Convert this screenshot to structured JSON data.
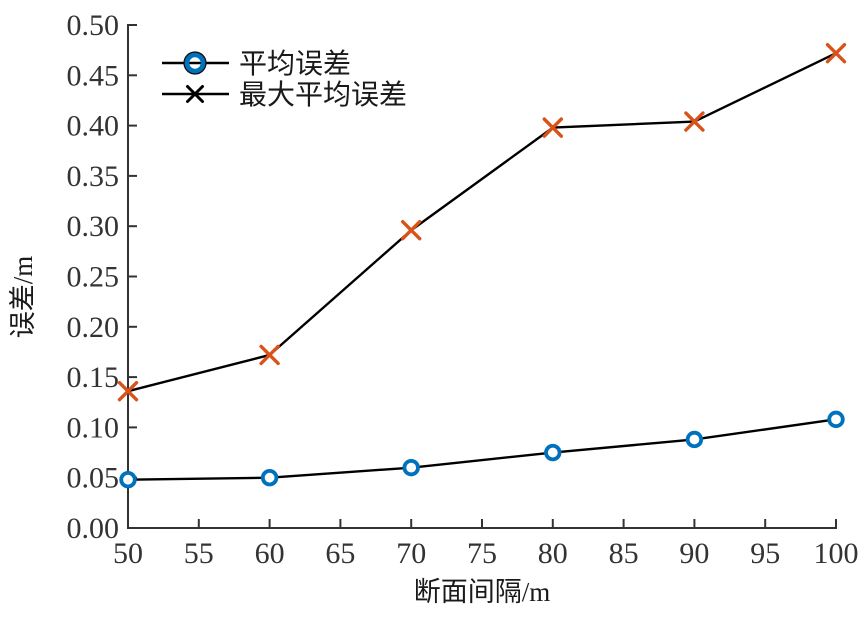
{
  "figure": {
    "background": "#ffffff",
    "axis_color": "#333333",
    "text_color": "#333333"
  },
  "chart_data": {
    "type": "line",
    "title": "",
    "xlabel": "断面间隔/m",
    "ylabel": "误差/m",
    "xlim": [
      50,
      100
    ],
    "ylim": [
      0.0,
      0.5
    ],
    "grid": false,
    "legend_position": "top-left-inside",
    "xticks": [
      "50",
      "55",
      "60",
      "65",
      "70",
      "75",
      "80",
      "85",
      "90",
      "95",
      "100"
    ],
    "yticks": [
      "0.00",
      "0.05",
      "0.10",
      "0.15",
      "0.20",
      "0.25",
      "0.30",
      "0.35",
      "0.40",
      "0.45",
      "0.50"
    ],
    "x": [
      50,
      60,
      70,
      80,
      90,
      100
    ],
    "series": [
      {
        "name": "平均误差",
        "values": [
          0.048,
          0.05,
          0.06,
          0.075,
          0.088,
          0.108
        ],
        "marker": "circle",
        "marker_color": "#0072BD",
        "legend_marker_color": "#0072BD",
        "line_color": "#000000"
      },
      {
        "name": "最大平均误差",
        "values": [
          0.136,
          0.172,
          0.296,
          0.398,
          0.404,
          0.472
        ],
        "marker": "x",
        "marker_color": "#D95319",
        "legend_marker_color": "#000000",
        "line_color": "#000000"
      }
    ]
  }
}
